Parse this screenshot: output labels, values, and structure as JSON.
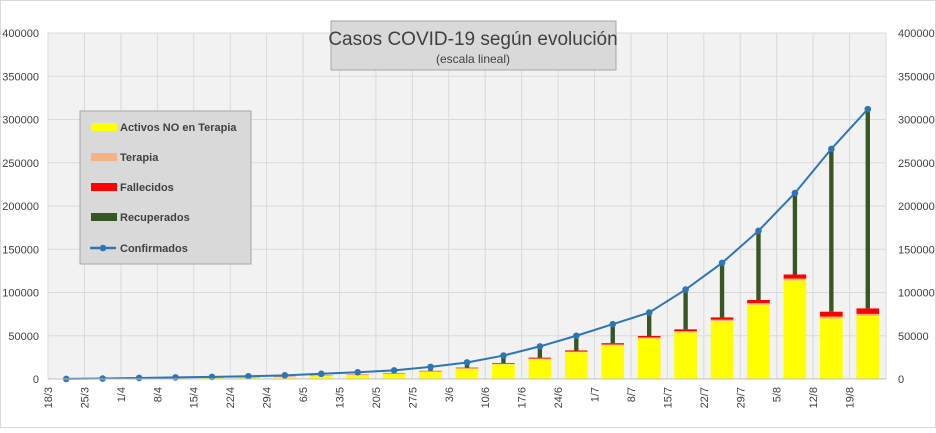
{
  "chart_data": {
    "type": "bar",
    "title": "Casos COVID-19 según evolución",
    "subtitle": "(escala lineal)",
    "xlabel": "",
    "ylabel": "",
    "ylim": [
      0,
      400000
    ],
    "y_ticks": [
      "0",
      "50000",
      "100000",
      "150000",
      "200000",
      "250000",
      "300000",
      "350000",
      "400000"
    ],
    "y_tick_values": [
      0,
      50000,
      100000,
      150000,
      200000,
      250000,
      300000,
      350000,
      400000
    ],
    "categories": [
      "18/3",
      "25/3",
      "1/4",
      "8/4",
      "15/4",
      "22/4",
      "29/4",
      "6/5",
      "13/5",
      "20/5",
      "27/5",
      "3/6",
      "10/6",
      "17/6",
      "24/6",
      "1/7",
      "8/7",
      "15/7",
      "22/7",
      "29/7",
      "5/8",
      "12/8",
      "19/8"
    ],
    "grid": true,
    "legend_position": "left",
    "stacked": true,
    "series": [
      {
        "name": "Activos NO en Terapia",
        "type": "bar",
        "color": "#FFFF00",
        "values": [
          100,
          400,
          800,
          1100,
          1400,
          1800,
          2400,
          3500,
          4500,
          6000,
          8500,
          12000,
          17000,
          23000,
          31000,
          39000,
          47000,
          54000,
          67000,
          86000,
          114000,
          70000,
          73000
        ]
      },
      {
        "name": "Terapia",
        "type": "bar",
        "color": "#F4B183",
        "values": [
          10,
          40,
          90,
          130,
          150,
          160,
          170,
          190,
          230,
          300,
          380,
          450,
          560,
          680,
          800,
          950,
          1100,
          1300,
          1600,
          1900,
          2100,
          2200,
          2300
        ]
      },
      {
        "name": "Fallecidos",
        "type": "bar",
        "color": "#FF0000",
        "values": [
          5,
          30,
          80,
          120,
          170,
          220,
          260,
          310,
          370,
          450,
          530,
          680,
          830,
          1000,
          1200,
          1450,
          1650,
          2100,
          2600,
          3400,
          4700,
          5600,
          6300
        ]
      },
      {
        "name": "Recuperados",
        "type": "bar",
        "color": "#375623",
        "values": [
          0,
          50,
          230,
          500,
          700,
          1000,
          1400,
          2000,
          2700,
          3200,
          4600,
          6000,
          8700,
          13000,
          17000,
          22000,
          27000,
          46000,
          63000,
          80000,
          94000,
          188000,
          230000
        ]
      },
      {
        "name": "Confirmados",
        "type": "line",
        "color": "#2E75B6",
        "values": [
          115,
          520,
          1200,
          1850,
          2420,
          3180,
          4230,
          6000,
          7800,
          9950,
          14000,
          19130,
          27090,
          37680,
          50000,
          63400,
          76750,
          103400,
          134200,
          171300,
          214900,
          266000,
          312000
        ]
      }
    ]
  }
}
